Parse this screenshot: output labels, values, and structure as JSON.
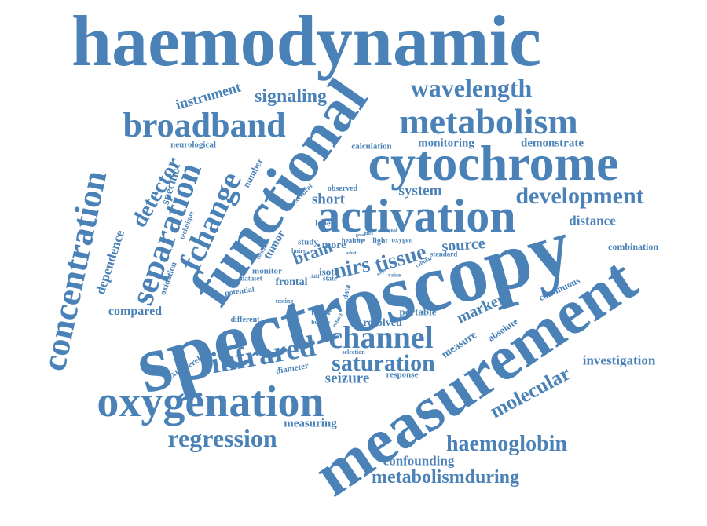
{
  "color": "#4a82b8",
  "words": [
    {
      "id": "haemodynamic",
      "text": "haemodynamic"
    },
    {
      "id": "spectroscopy",
      "text": "spectroscopy"
    },
    {
      "id": "measurement",
      "text": "measurement"
    },
    {
      "id": "functional",
      "text": "functional"
    },
    {
      "id": "cytochrome",
      "text": "cytochrome"
    },
    {
      "id": "activation",
      "text": "activation"
    },
    {
      "id": "oxygenation",
      "text": "oxygenation"
    },
    {
      "id": "metabolism",
      "text": "metabolism"
    },
    {
      "id": "broadband",
      "text": "broadband"
    },
    {
      "id": "concentration",
      "text": "concentration"
    },
    {
      "id": "separation",
      "text": "separation"
    },
    {
      "id": "channel",
      "text": "channel"
    },
    {
      "id": "infrared",
      "text": "infrared"
    },
    {
      "id": "fchange",
      "text": "fchange"
    },
    {
      "id": "development",
      "text": "development"
    },
    {
      "id": "wavelength",
      "text": "wavelength"
    },
    {
      "id": "saturation",
      "text": "saturation"
    },
    {
      "id": "regression",
      "text": "regression"
    },
    {
      "id": "haemoglobin",
      "text": "haemoglobin"
    },
    {
      "id": "metabolismduring",
      "text": "metabolismduring"
    },
    {
      "id": "molecular",
      "text": "molecular"
    },
    {
      "id": "signaling",
      "text": "signaling"
    },
    {
      "id": "detector",
      "text": "detector"
    },
    {
      "id": "nirs",
      "text": "nirs"
    },
    {
      "id": "tissue",
      "text": "tissue"
    },
    {
      "id": "brain",
      "text": "brain"
    },
    {
      "id": "marker",
      "text": "marker"
    },
    {
      "id": "instrument",
      "text": "instrument"
    },
    {
      "id": "system",
      "text": "system"
    },
    {
      "id": "short",
      "text": "short"
    },
    {
      "id": "distance",
      "text": "distance"
    },
    {
      "id": "source",
      "text": "source"
    },
    {
      "id": "seizure",
      "text": "seizure"
    },
    {
      "id": "investigation",
      "text": "investigation"
    },
    {
      "id": "confounding",
      "text": "confounding"
    },
    {
      "id": "monitoring",
      "text": "monitoring"
    },
    {
      "id": "demonstrate",
      "text": "demonstrate"
    },
    {
      "id": "compared",
      "text": "compared"
    },
    {
      "id": "dependence",
      "text": "dependence"
    },
    {
      "id": "specific",
      "text": "specific"
    },
    {
      "id": "measuring",
      "text": "measuring"
    },
    {
      "id": "measure",
      "text": "measure"
    },
    {
      "id": "portable",
      "text": "portable"
    },
    {
      "id": "resolved",
      "text": "resolved"
    },
    {
      "id": "tumor",
      "text": "tumor"
    },
    {
      "id": "more",
      "text": "more"
    },
    {
      "id": "frontal",
      "text": "frontal"
    },
    {
      "id": "number",
      "text": "number"
    },
    {
      "id": "neurological",
      "text": "neurological"
    },
    {
      "id": "extracerebral",
      "text": "extracerebral"
    },
    {
      "id": "diameter",
      "text": "diameter"
    },
    {
      "id": "response",
      "text": "response"
    },
    {
      "id": "combination",
      "text": "combination"
    },
    {
      "id": "continuous",
      "text": "continuous"
    },
    {
      "id": "absolute",
      "text": "absolute"
    },
    {
      "id": "calculation",
      "text": "calculation"
    },
    {
      "id": "oxidation",
      "text": "oxidation"
    },
    {
      "id": "technique",
      "text": "technique"
    },
    {
      "id": "potential",
      "text": "potential"
    },
    {
      "id": "different",
      "text": "different"
    },
    {
      "id": "monitor",
      "text": "monitor"
    },
    {
      "id": "dataset",
      "text": "dataset"
    },
    {
      "id": "isott",
      "text": "isott"
    },
    {
      "id": "study",
      "text": "study"
    },
    {
      "id": "lobe",
      "text": "lobe"
    },
    {
      "id": "observed",
      "text": "observed"
    },
    {
      "id": "cerebral",
      "text": "cerebral"
    },
    {
      "id": "healthy",
      "text": "healthy"
    },
    {
      "id": "light",
      "text": "light"
    },
    {
      "id": "oxygen",
      "text": "oxygen"
    },
    {
      "id": "standard",
      "text": "standard"
    },
    {
      "id": "factor",
      "text": "factor"
    },
    {
      "id": "bundle",
      "text": "bundle"
    },
    {
      "id": "testing",
      "text": "testing"
    },
    {
      "id": "state",
      "text": "state"
    },
    {
      "id": "data",
      "text": "data"
    },
    {
      "id": "selection",
      "text": "selection"
    },
    {
      "id": "common",
      "text": "common"
    },
    {
      "id": "bnirs",
      "text": "bnirs"
    },
    {
      "id": "signal",
      "text": "signal"
    },
    {
      "id": "value",
      "text": "value"
    },
    {
      "id": "cellular",
      "text": "cellular"
    },
    {
      "id": "robust",
      "text": "robust"
    },
    {
      "id": "good",
      "text": "good"
    },
    {
      "id": "fnirs",
      "text": "fnirs"
    },
    {
      "id": "term",
      "text": "term"
    },
    {
      "id": "slope",
      "text": "slope"
    },
    {
      "id": "child",
      "text": "child"
    },
    {
      "id": "adult",
      "text": "adult"
    }
  ]
}
